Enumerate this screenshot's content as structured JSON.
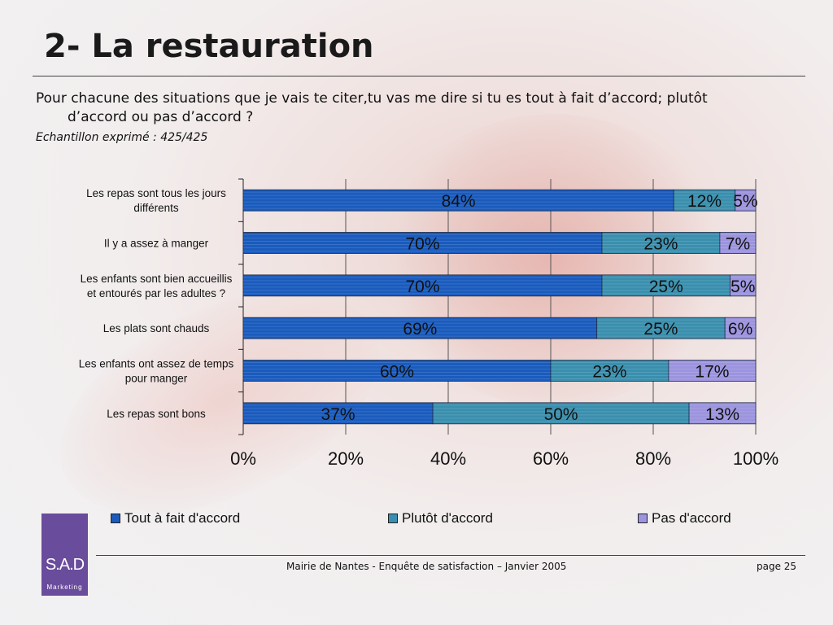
{
  "slide": {
    "title": "2- La restauration",
    "question": "Pour chacune des situations que je vais te citer,tu vas me dire si tu es tout à fait d’accord; plutôt d’accord ou pas d’accord ?",
    "sample": "Echantillon exprimé : 425/425",
    "footer_text": "Mairie de Nantes - Enquête de satisfaction – Janvier 2005",
    "page_label": "page 25",
    "logo": {
      "main": "S.A.D",
      "sub": "Marketing",
      "color": "#6a4c9c"
    }
  },
  "chart_data": {
    "type": "bar",
    "orientation": "horizontal",
    "stacked": true,
    "percent": true,
    "categories": [
      "Les repas sont tous les jours différents",
      "Il y a assez à manger",
      "Les enfants sont bien accueillis et entourés par les adultes ?",
      "Les plats sont chauds",
      "Les enfants ont assez de temps pour manger",
      "Les repas sont bons"
    ],
    "series": [
      {
        "name": "Tout à fait d'accord",
        "color": "#1a5bbd",
        "values": [
          84,
          70,
          70,
          69,
          60,
          37
        ]
      },
      {
        "name": "Plutôt d'accord",
        "color": "#3a8fae",
        "values": [
          12,
          23,
          25,
          25,
          23,
          50
        ]
      },
      {
        "name": "Pas d'accord",
        "color": "#9c94de",
        "values": [
          5,
          7,
          5,
          6,
          17,
          13
        ]
      }
    ],
    "xticks": [
      "0%",
      "20%",
      "40%",
      "60%",
      "80%",
      "100%"
    ],
    "xlim": [
      0,
      100
    ],
    "grid": true,
    "legend": "bottom"
  }
}
